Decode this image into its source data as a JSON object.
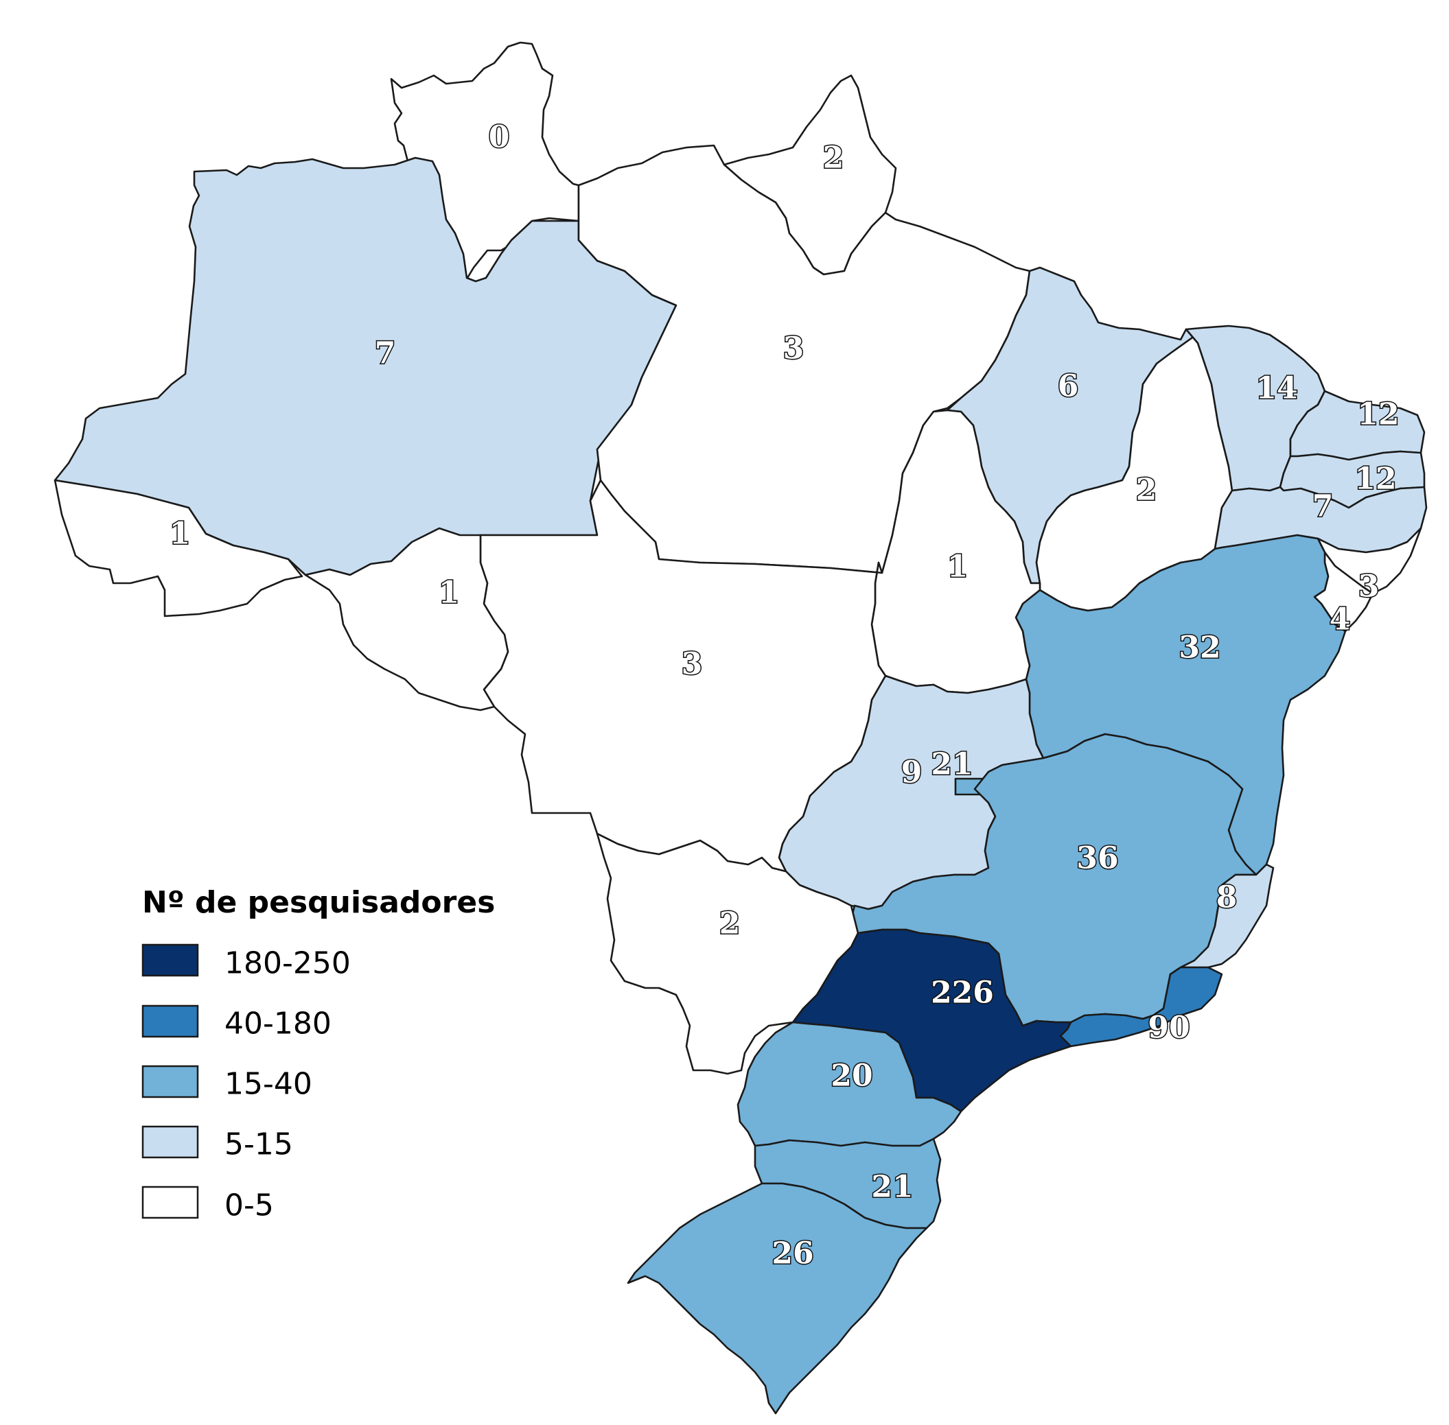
{
  "map": {
    "legend": {
      "title": "Nº de pesquisadores",
      "classes": [
        {
          "label": "180-250",
          "color": "#08306b"
        },
        {
          "label": "40-180",
          "color": "#2b7bba"
        },
        {
          "label": "15-40",
          "color": "#72b1d8"
        },
        {
          "label": "5-15",
          "color": "#c8ddf0"
        },
        {
          "label": "0-5",
          "color": "#ffffff"
        }
      ]
    },
    "regions": [
      {
        "id": "RR",
        "value": "0"
      },
      {
        "id": "AP",
        "value": "2"
      },
      {
        "id": "AM",
        "value": "7"
      },
      {
        "id": "PA",
        "value": "3"
      },
      {
        "id": "MA",
        "value": "6"
      },
      {
        "id": "CE",
        "value": "14"
      },
      {
        "id": "RN",
        "value": "12"
      },
      {
        "id": "PB",
        "value": "12"
      },
      {
        "id": "PE",
        "value": "7"
      },
      {
        "id": "PI",
        "value": "2"
      },
      {
        "id": "AC",
        "value": "1"
      },
      {
        "id": "RO",
        "value": "1"
      },
      {
        "id": "TO",
        "value": "1"
      },
      {
        "id": "AL",
        "value": "3"
      },
      {
        "id": "SE",
        "value": "4"
      },
      {
        "id": "MT",
        "value": "3"
      },
      {
        "id": "BA",
        "value": "32"
      },
      {
        "id": "GO",
        "value": "9"
      },
      {
        "id": "DF",
        "value": "21"
      },
      {
        "id": "MG",
        "value": "36"
      },
      {
        "id": "ES",
        "value": "8"
      },
      {
        "id": "MS",
        "value": "2"
      },
      {
        "id": "SP",
        "value": "226"
      },
      {
        "id": "RJ",
        "value": "90"
      },
      {
        "id": "PR",
        "value": "20"
      },
      {
        "id": "SC",
        "value": "21"
      },
      {
        "id": "RS",
        "value": "26"
      }
    ]
  }
}
